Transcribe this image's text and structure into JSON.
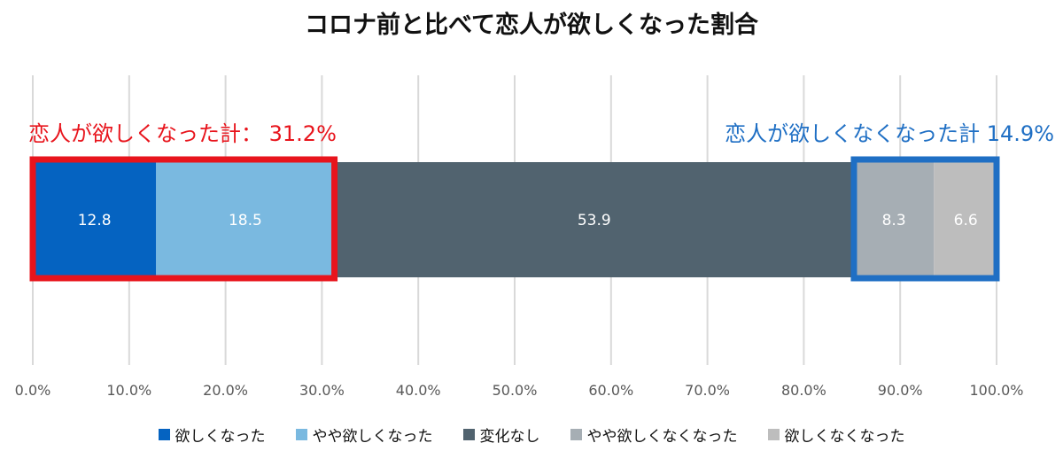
{
  "chart_data": {
    "type": "bar",
    "orientation": "horizontal-stacked",
    "title": "コロナ前と比べて恋人が欲しくなった割合",
    "xlim": [
      0,
      100
    ],
    "x_ticks": [
      "0.0%",
      "10.0%",
      "20.0%",
      "30.0%",
      "40.0%",
      "50.0%",
      "60.0%",
      "70.0%",
      "80.0%",
      "90.0%",
      "100.0%"
    ],
    "grid": "vertical",
    "legend_position": "bottom",
    "series": [
      {
        "name": "欲しくなった",
        "value": 12.8,
        "label": "12.8",
        "color": "#0563c1"
      },
      {
        "name": "やや欲しくなった",
        "value": 18.5,
        "label": "18.5",
        "color": "#7ab9e0"
      },
      {
        "name": "変化なし",
        "value": 53.9,
        "label": "53.9",
        "color": "#51636f"
      },
      {
        "name": "やや欲しくなくなった",
        "value": 8.3,
        "label": "8.3",
        "color": "#a6aeb4"
      },
      {
        "name": "欲しくなくなった",
        "value": 6.6,
        "label": "6.6",
        "color": "#bdbdbd"
      }
    ],
    "annotations": [
      {
        "text": "恋人が欲しくなった計： 31.2%",
        "range": [
          0,
          31.3
        ],
        "color": "#e8141c"
      },
      {
        "text": "恋人が欲しくなくなった計 14.9%",
        "range": [
          85.2,
          100
        ],
        "color": "#1f6fc4"
      }
    ]
  }
}
